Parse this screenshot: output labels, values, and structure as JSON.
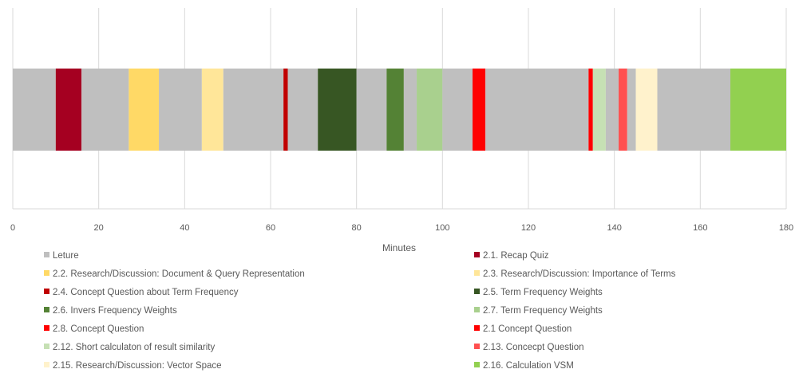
{
  "chart_data": {
    "type": "bar",
    "orientation": "horizontal-stacked-timeline",
    "xlabel": "Minutes",
    "xlim": [
      0,
      180
    ],
    "xticks": [
      "0",
      "20",
      "40",
      "60",
      "80",
      "100",
      "120",
      "140",
      "160",
      "180"
    ],
    "grid": true,
    "legend_position": "bottom",
    "legend": [
      {
        "name": "Leture",
        "color": "#bfbfbf"
      },
      {
        "name": "2.1. Recap Quiz",
        "color": "#a50021"
      },
      {
        "name": "2.2. Research/Discussion: Document & Query Representation",
        "color": "#ffd966"
      },
      {
        "name": "2.3. Research/Discussion: Importance of Terms",
        "color": "#ffe699"
      },
      {
        "name": "2.4. Concept Question about Term Frequency",
        "color": "#c00000"
      },
      {
        "name": "2.5. Term Frequency Weights",
        "color": "#375623"
      },
      {
        "name": "2.6. Invers Frequency Weights",
        "color": "#548235"
      },
      {
        "name": "2.7. Term Frequency Weights",
        "color": "#a9d08e"
      },
      {
        "name": "2.8. Concept Question",
        "color": "#ff0000"
      },
      {
        "name": "2.1 Concept Question",
        "color": "#ff0000"
      },
      {
        "name": "2.12. Short calculaton of result similarity",
        "color": "#c6e0b4"
      },
      {
        "name": "2.13. Concecpt Question",
        "color": "#ff5050"
      },
      {
        "name": "2.15. Research/Discussion: Vector Space",
        "color": "#fff2cc"
      },
      {
        "name": "2.16. Calculation VSM",
        "color": "#92d050"
      }
    ],
    "segments": [
      {
        "series": 0,
        "start": 0,
        "end": 10
      },
      {
        "series": 1,
        "start": 10,
        "end": 16
      },
      {
        "series": 0,
        "start": 16,
        "end": 27
      },
      {
        "series": 2,
        "start": 27,
        "end": 34
      },
      {
        "series": 0,
        "start": 34,
        "end": 44
      },
      {
        "series": 3,
        "start": 44,
        "end": 49
      },
      {
        "series": 0,
        "start": 49,
        "end": 63
      },
      {
        "series": 4,
        "start": 63,
        "end": 64
      },
      {
        "series": 0,
        "start": 64,
        "end": 71
      },
      {
        "series": 5,
        "start": 71,
        "end": 80
      },
      {
        "series": 0,
        "start": 80,
        "end": 87
      },
      {
        "series": 6,
        "start": 87,
        "end": 91
      },
      {
        "series": 0,
        "start": 91,
        "end": 94
      },
      {
        "series": 7,
        "start": 94,
        "end": 100
      },
      {
        "series": 0,
        "start": 100,
        "end": 107
      },
      {
        "series": 8,
        "start": 107,
        "end": 110
      },
      {
        "series": 0,
        "start": 110,
        "end": 134
      },
      {
        "series": 9,
        "start": 134,
        "end": 135
      },
      {
        "series": 10,
        "start": 135,
        "end": 138
      },
      {
        "series": 0,
        "start": 138,
        "end": 141
      },
      {
        "series": 11,
        "start": 141,
        "end": 143
      },
      {
        "series": 0,
        "start": 143,
        "end": 145
      },
      {
        "series": 12,
        "start": 145,
        "end": 150
      },
      {
        "series": 0,
        "start": 150,
        "end": 167
      },
      {
        "series": 13,
        "start": 167,
        "end": 180
      }
    ]
  }
}
